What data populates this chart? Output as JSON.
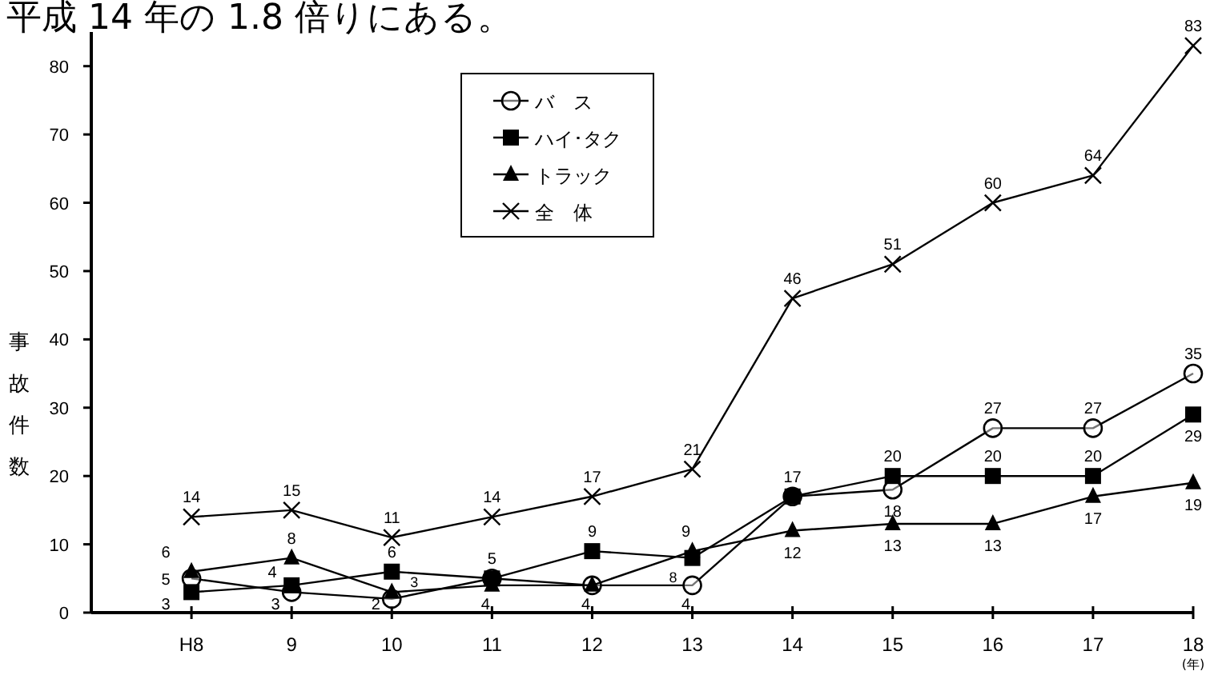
{
  "chart_data": {
    "type": "line",
    "title": "平成 14 年の 1.8 倍りにある。",
    "ylabel": "事故件数",
    "categories": [
      "H8",
      "9",
      "10",
      "11",
      "12",
      "13",
      "14",
      "15",
      "16",
      "17",
      "18"
    ],
    "series": [
      {
        "name": "バ　ス",
        "color": "#000000",
        "marker": "circle",
        "values": [
          5,
          3,
          2,
          5,
          4,
          4,
          17,
          18,
          27,
          27,
          35
        ],
        "value_labels": [
          "5",
          "3",
          "2",
          null,
          null,
          "4",
          null,
          "18",
          "27",
          "27",
          "35"
        ]
      },
      {
        "name": "ハイ･タク",
        "color": "#000000",
        "marker": "square",
        "values": [
          3,
          4,
          6,
          5,
          9,
          8,
          17,
          20,
          20,
          20,
          29
        ],
        "value_labels": [
          "3",
          "4",
          "6",
          "5",
          "9",
          "8",
          "17",
          "20",
          "20",
          "20",
          "29"
        ]
      },
      {
        "name": "トラック",
        "color": "#000000",
        "marker": "triangle",
        "values": [
          6,
          8,
          3,
          4,
          4,
          9,
          12,
          13,
          13,
          17,
          19
        ],
        "value_labels": [
          "6",
          "8",
          "3",
          "4",
          "4",
          "9",
          "12",
          "13",
          "13",
          "17",
          "19"
        ]
      },
      {
        "name": "全　体",
        "color": "#000000",
        "marker": "cross",
        "values": [
          14,
          15,
          11,
          14,
          17,
          21,
          46,
          51,
          60,
          64,
          83
        ],
        "value_labels": [
          "14",
          "15",
          "11",
          "14",
          "17",
          "21",
          "46",
          "51",
          "60",
          "64",
          "83"
        ]
      }
    ],
    "ylim": [
      0,
      85
    ],
    "yticks": [
      0,
      10,
      20,
      30,
      40,
      50,
      60,
      70,
      80
    ],
    "grid": false,
    "legend": "top",
    "line_style": "solid",
    "annotations": [
      "(年)"
    ]
  }
}
